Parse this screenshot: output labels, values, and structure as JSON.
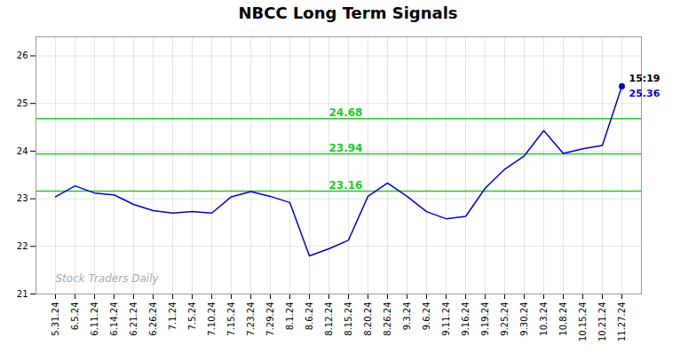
{
  "chart_data": {
    "type": "line",
    "title": "NBCC Long Term Signals",
    "categories": [
      "5.31.24",
      "6.5.24",
      "6.11.24",
      "6.14.24",
      "6.21.24",
      "6.26.24",
      "7.1.24",
      "7.5.24",
      "7.10.24",
      "7.15.24",
      "7.23.24",
      "7.29.24",
      "8.1.24",
      "8.6.24",
      "8.12.24",
      "8.15.24",
      "8.20.24",
      "8.26.24",
      "9.3.24",
      "9.6.24",
      "9.11.24",
      "9.16.24",
      "9.19.24",
      "9.25.24",
      "9.30.24",
      "10.3.24",
      "10.8.24",
      "10.15.24",
      "10.21.24",
      "11.27.24"
    ],
    "values": [
      23.04,
      23.27,
      23.12,
      23.08,
      22.88,
      22.75,
      22.7,
      22.73,
      22.7,
      23.04,
      23.15,
      23.05,
      22.92,
      21.8,
      21.95,
      22.13,
      23.05,
      23.33,
      23.05,
      22.73,
      22.58,
      22.63,
      23.22,
      23.62,
      23.9,
      24.43,
      23.95,
      24.05,
      24.12,
      25.36
    ],
    "color": "#0000cc",
    "ylim": [
      21.0,
      26.4
    ],
    "yticks": [
      21,
      22,
      23,
      24,
      25,
      26
    ],
    "grid": true,
    "hlines": [
      {
        "value": 23.16,
        "label": "23.16",
        "color": "#22cc22"
      },
      {
        "value": 23.94,
        "label": "23.94",
        "color": "#22cc22"
      },
      {
        "value": 24.68,
        "label": "24.68",
        "color": "#22cc22"
      }
    ],
    "last_label_time": "15:19",
    "last_label_price": "25.36",
    "watermark": "Stock Traders Daily"
  }
}
